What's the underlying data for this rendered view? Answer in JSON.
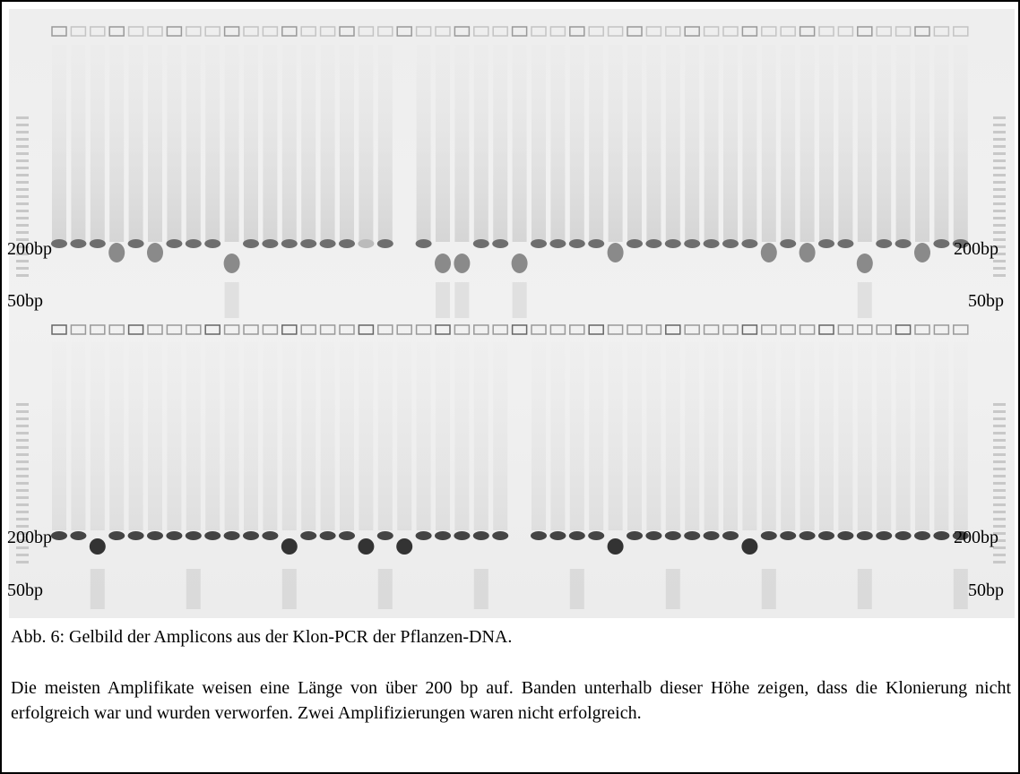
{
  "figure": {
    "markers": [
      {
        "text": "200bp"
      },
      {
        "text": "50bp"
      },
      {
        "text": "200bp"
      },
      {
        "text": "50bp"
      },
      {
        "text": "200bp"
      },
      {
        "text": "50bp"
      },
      {
        "text": "200bp"
      },
      {
        "text": "50bp"
      }
    ]
  },
  "caption": "Abb. 6: Gelbild der Amplicons aus der Klon-PCR der Pflanzen-DNA.",
  "paragraph": "Die meisten Amplifikate weisen eine Länge von über 200 bp auf. Banden unterhalb dieser Höhe zeigen, dass die Klonierung nicht erfolgreich war und wurden verworfen. Zwei Amplifizierungen waren nicht erfolgreich."
}
